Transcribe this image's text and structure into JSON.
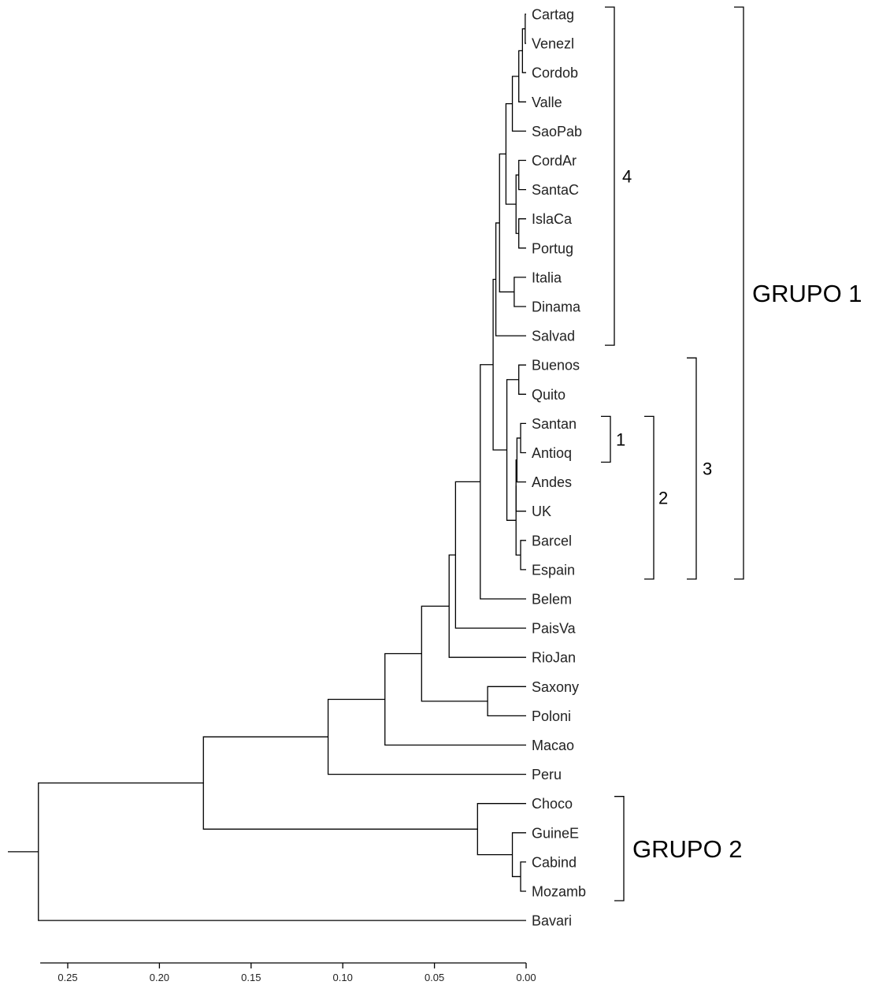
{
  "chart_data": {
    "type": "dendrogram",
    "title": "",
    "xlabel": "",
    "ylabel": "",
    "xlim": [
      0.265,
      0.0
    ],
    "x_ticks": [
      "0.25",
      "0.20",
      "0.15",
      "0.10",
      "0.05",
      "0.00"
    ],
    "x_tick_values": [
      0.25,
      0.2,
      0.15,
      0.1,
      0.05,
      0.0
    ],
    "leaves": [
      "Cartag",
      "Venezl",
      "Cordob",
      "Valle",
      "SaoPab",
      "CordAr",
      "SantaC",
      "IslaCa",
      "Portug",
      "Italia",
      "Dinama",
      "Salvad",
      "Buenos",
      "Quito",
      "Santan",
      "Antioq",
      "Andes",
      "UK",
      "Barcel",
      "Espain",
      "Belem",
      "PaisVa",
      "RioJan",
      "Saxony",
      "Poloni",
      "Macao",
      "Peru",
      "Choco",
      "GuineE",
      "Cabind",
      "Mozamb",
      "Bavari"
    ],
    "merges": [
      {
        "a": "Cartag",
        "b": "Venezl",
        "height": 0.0005
      },
      {
        "a": "Santan",
        "b": "Antioq",
        "height": 0.003
      },
      {
        "a": "Cabind",
        "b": "Mozamb",
        "height": 0.003
      },
      {
        "a": "Barcel",
        "b": "Espain",
        "height": 0.003
      },
      {
        "a": "Buenos",
        "b": "Quito",
        "height": 0.004
      },
      {
        "a": "CordAr",
        "b": "SantaC",
        "height": 0.004
      },
      {
        "a": "IslaCa",
        "b": "Portug",
        "height": 0.004
      },
      {
        "a": "m1",
        "b": "Cordob",
        "height": 0.002
      },
      {
        "a": "m8",
        "b": "Valle",
        "height": 0.004
      },
      {
        "a": "m2",
        "b": "Andes",
        "height": 0.005
      },
      {
        "a": "m10",
        "b": "UK",
        "height": 0.0055
      },
      {
        "a": "m11",
        "b": "m4",
        "height": 0.0055
      },
      {
        "a": "m6",
        "b": "m7",
        "height": 0.0055
      },
      {
        "a": "Italia",
        "b": "Dinama",
        "height": 0.0065
      },
      {
        "a": "m9",
        "b": "SaoPab",
        "height": 0.0075
      },
      {
        "a": "m3",
        "b": "GuineE",
        "height": 0.0075
      },
      {
        "a": "m5",
        "b": "m12",
        "height": 0.0105
      },
      {
        "a": "m15",
        "b": "m13",
        "height": 0.011
      },
      {
        "a": "m18",
        "b": "m14",
        "height": 0.0145
      },
      {
        "a": "Saxony",
        "b": "Poloni",
        "height": 0.021
      },
      {
        "a": "m19",
        "b": "Salvad",
        "height": 0.0165
      },
      {
        "a": "m21",
        "b": "m17",
        "height": 0.018
      },
      {
        "a": "m22",
        "b": "Belem",
        "height": 0.025
      },
      {
        "a": "Choco",
        "b": "m16",
        "height": 0.0265
      },
      {
        "a": "m23",
        "b": "PaisVa",
        "height": 0.0385
      },
      {
        "a": "m25",
        "b": "RioJan",
        "height": 0.042
      },
      {
        "a": "m26",
        "b": "m20",
        "height": 0.057
      },
      {
        "a": "m27",
        "b": "Macao",
        "height": 0.077
      },
      {
        "a": "m28",
        "b": "Peru",
        "height": 0.108
      },
      {
        "a": "m29",
        "b": "m24",
        "height": 0.176
      },
      {
        "a": "m30",
        "b": "Bavari",
        "height": 0.266
      }
    ],
    "annotations": [
      {
        "label": "4",
        "from": "Cartag",
        "to": "Salvad"
      },
      {
        "label": "1",
        "from": "Santan",
        "to": "Antioq"
      },
      {
        "label": "2",
        "from": "Santan",
        "to": "Espain"
      },
      {
        "label": "3",
        "from": "Buenos",
        "to": "Espain"
      },
      {
        "label": "GRUPO 1",
        "from": "Cartag",
        "to": "Espain"
      },
      {
        "label": "GRUPO 2",
        "from": "Choco",
        "to": "Mozamb"
      }
    ]
  }
}
